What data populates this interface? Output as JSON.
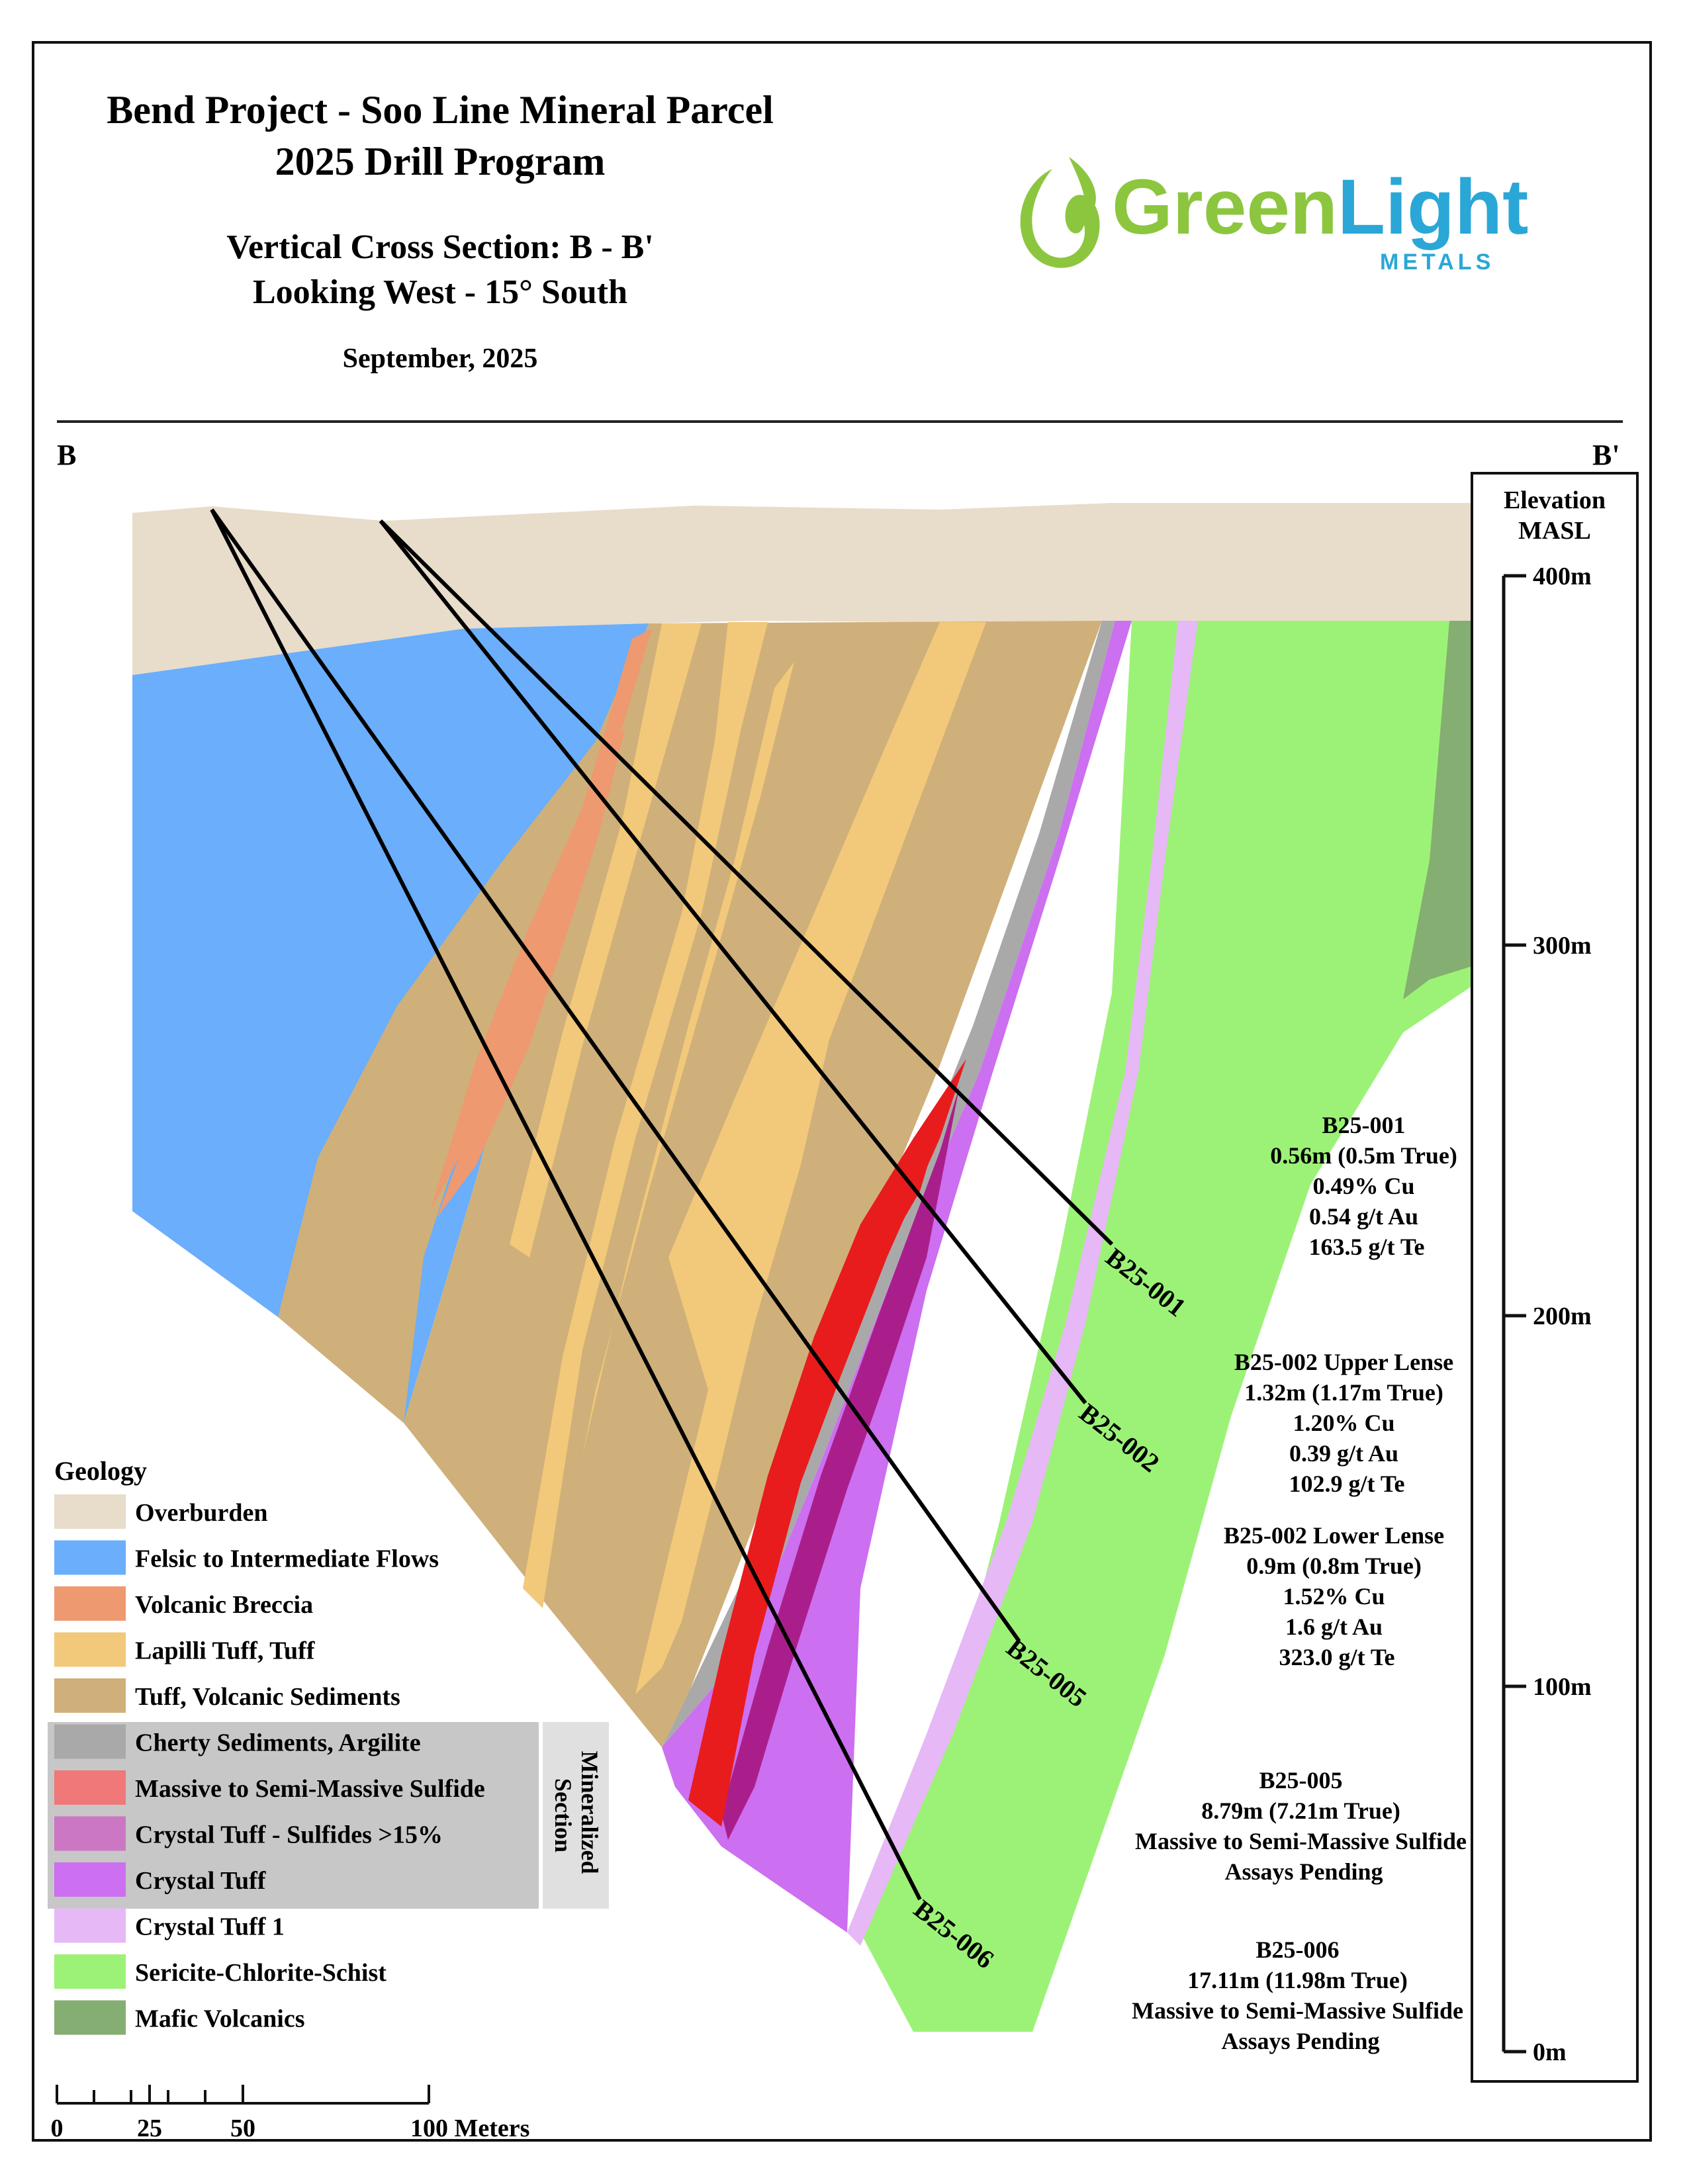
{
  "header": {
    "title_line1": "Bend Project - Soo Line Mineral Parcel",
    "title_line2": "2025 Drill Program",
    "subtitle_line1": "Vertical Cross Section: B - B'",
    "subtitle_line2": "Looking West - 15° South",
    "date": "September, 2025"
  },
  "logo": {
    "word1": "Green",
    "word2": "Light",
    "tagline": "METALS",
    "color_green": "#8cc63f",
    "color_blue": "#2aa7d6"
  },
  "section": {
    "left_label": "B",
    "right_label": "B'"
  },
  "elevation_scale": {
    "title_line1": "Elevation",
    "title_line2": "MASL",
    "ticks": [
      "400m",
      "300m",
      "200m",
      "100m",
      "0m"
    ]
  },
  "distance_scale": {
    "labels": [
      "0",
      "25",
      "50",
      "100 Meters"
    ]
  },
  "legend": {
    "title": "Geology",
    "mineralized_label_line1": "Mineralized",
    "mineralized_label_line2": "Section",
    "items": [
      {
        "label": "Overburden",
        "color": "#e8dcca"
      },
      {
        "label": "Felsic to Intermediate Flows",
        "color": "#6aaefc"
      },
      {
        "label": "Volcanic Breccia",
        "color": "#ee9970"
      },
      {
        "label": "Lapilli Tuff, Tuff",
        "color": "#f2c87a"
      },
      {
        "label": "Tuff, Volcanic Sediments",
        "color": "#cfb07a"
      },
      {
        "label": "Cherty Sediments, Argilite",
        "color": "#a9a9a9"
      },
      {
        "label": "Massive to Semi-Massive Sulfide",
        "color": "#f07878"
      },
      {
        "label": "Crystal Tuff - Sulfides >15%",
        "color": "#cc77c4"
      },
      {
        "label": "Crystal Tuff",
        "color": "#cc6ff0"
      },
      {
        "label": "Crystal Tuff 1",
        "color": "#e6b8f6"
      },
      {
        "label": "Sericite-Chlorite-Schist",
        "color": "#9cf276"
      },
      {
        "label": "Mafic Volcanics",
        "color": "#84ae72"
      }
    ]
  },
  "geology_colors": {
    "overburden": "#e8dcca",
    "felsic": "#6aaefc",
    "breccia": "#ee9970",
    "lapilli": "#f2c87a",
    "tuff_sed": "#cfb07a",
    "cherty": "#a9a9a9",
    "sulfide": "#e81c1c",
    "crystal_sulfides": "#aa1e8c",
    "crystal_tuff": "#cc6ff0",
    "crystal_tuff1": "#e6b8f6",
    "schist": "#9cf276",
    "mafic": "#84ae72"
  },
  "drill_holes": [
    {
      "id": "B25-001"
    },
    {
      "id": "B25-002"
    },
    {
      "id": "B25-005"
    },
    {
      "id": "B25-006"
    }
  ],
  "intercepts": [
    {
      "lines": [
        "B25-001",
        "0.56m (0.5m True)",
        "0.49% Cu",
        "0.54 g/t Au",
        "163.5 g/t Te"
      ]
    },
    {
      "lines": [
        "B25-002 Upper Lense",
        "1.32m (1.17m True)",
        "1.20% Cu",
        "0.39 g/t Au",
        "102.9 g/t Te"
      ]
    },
    {
      "lines": [
        "B25-002 Lower Lense",
        "0.9m (0.8m True)",
        "1.52% Cu",
        "1.6 g/t Au",
        "323.0 g/t Te"
      ]
    },
    {
      "lines": [
        "B25-005",
        "8.79m (7.21m True)",
        "Massive to Semi-Massive Sulfide",
        "Assays Pending"
      ]
    },
    {
      "lines": [
        "B25-006",
        "17.11m (11.98m True)",
        "Massive to Semi-Massive Sulfide",
        "Assays Pending"
      ]
    }
  ]
}
